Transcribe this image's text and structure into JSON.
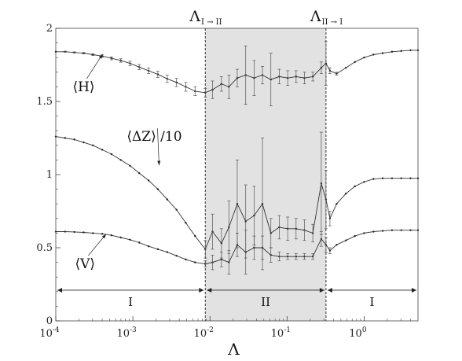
{
  "chart_data": {
    "type": "line",
    "xscale": "log",
    "xlim": [
      0.0001,
      5
    ],
    "ylim": [
      0,
      2
    ],
    "grid": false,
    "xlabel": "Λ",
    "ylabel": "",
    "x_ticks": [
      {
        "value": 0.0001,
        "base": "10",
        "exp": "-4"
      },
      {
        "value": 0.001,
        "base": "10",
        "exp": "-3"
      },
      {
        "value": 0.01,
        "base": "10",
        "exp": "-2"
      },
      {
        "value": 0.1,
        "base": "10",
        "exp": "-1"
      },
      {
        "value": 1,
        "base": "10",
        "exp": "0"
      }
    ],
    "y_ticks": [
      {
        "value": 0,
        "label": "0"
      },
      {
        "value": 0.5,
        "label": "0.5"
      },
      {
        "value": 1,
        "label": "1"
      },
      {
        "value": 1.5,
        "label": "1.5"
      },
      {
        "value": 2,
        "label": "2"
      }
    ],
    "shaded_region": {
      "x_start": 0.0087,
      "x_end": 0.32
    },
    "transitions": [
      {
        "x": 0.0087,
        "label_main": "Λ",
        "label_sub": "I → II"
      },
      {
        "x": 0.32,
        "label_main": "Λ",
        "label_sub": "II → I"
      }
    ],
    "phase_labels": [
      {
        "label": "I",
        "x_from": 0.0001,
        "x_to": 0.0087
      },
      {
        "label": "II",
        "x_from": 0.0087,
        "x_to": 0.32
      },
      {
        "label": "I",
        "x_from": 0.32,
        "x_to": 5
      }
    ],
    "arrow_y": 0.21,
    "series": [
      {
        "name": "⟨H⟩",
        "x": [
          0.0001,
          0.000132,
          0.000174,
          0.00023,
          0.000303,
          0.0004,
          0.000528,
          0.000697,
          0.00092,
          0.00121,
          0.0016,
          0.00211,
          0.00279,
          0.00368,
          0.00486,
          0.00641,
          0.0087,
          0.0108,
          0.0141,
          0.0176,
          0.0226,
          0.0291,
          0.0374,
          0.048,
          0.0617,
          0.0792,
          0.102,
          0.131,
          0.168,
          0.216,
          0.278,
          0.32,
          0.36,
          0.44,
          0.58,
          0.76,
          1.0,
          1.32,
          1.74,
          2.3,
          3.03,
          4.0,
          5.0
        ],
        "y": [
          1.84,
          1.84,
          1.835,
          1.83,
          1.82,
          1.81,
          1.795,
          1.78,
          1.76,
          1.735,
          1.71,
          1.685,
          1.655,
          1.63,
          1.6,
          1.57,
          1.56,
          1.58,
          1.62,
          1.6,
          1.66,
          1.68,
          1.66,
          1.68,
          1.65,
          1.67,
          1.66,
          1.67,
          1.66,
          1.67,
          1.73,
          1.76,
          1.71,
          1.69,
          1.73,
          1.77,
          1.8,
          1.82,
          1.83,
          1.84,
          1.845,
          1.85,
          1.85
        ],
        "err": [
          0,
          0.003,
          0.004,
          0.005,
          0.006,
          0.008,
          0.01,
          0.012,
          0.015,
          0.018,
          0.02,
          0.022,
          0.025,
          0.028,
          0.03,
          0.03,
          0.03,
          0.06,
          0.05,
          0.08,
          0.06,
          0.2,
          0.12,
          0.06,
          0.18,
          0.05,
          0.05,
          0.04,
          0.04,
          0.03,
          0.04,
          0.15,
          0.02,
          0.01,
          0,
          0,
          0,
          0,
          0,
          0,
          0,
          0,
          0
        ],
        "label": "⟨H⟩",
        "label_at": [
          0.00023,
          1.57
        ],
        "arrow_to": [
          0.000405,
          1.84
        ]
      },
      {
        "name": "⟨ΔZ⟩/10",
        "x": [
          0.0001,
          0.000132,
          0.000174,
          0.00023,
          0.000303,
          0.0004,
          0.000528,
          0.000697,
          0.00092,
          0.00121,
          0.0016,
          0.00211,
          0.00279,
          0.00368,
          0.00486,
          0.00641,
          0.0087,
          0.0108,
          0.0141,
          0.0176,
          0.0226,
          0.0291,
          0.0374,
          0.048,
          0.0617,
          0.0792,
          0.102,
          0.131,
          0.168,
          0.216,
          0.278,
          0.32,
          0.36,
          0.44,
          0.58,
          0.76,
          1.0,
          1.32,
          1.74,
          2.3,
          3.03,
          4.0,
          5.0
        ],
        "y": [
          1.26,
          1.25,
          1.24,
          1.22,
          1.2,
          1.17,
          1.14,
          1.1,
          1.06,
          1.01,
          0.96,
          0.9,
          0.83,
          0.76,
          0.67,
          0.58,
          0.49,
          0.61,
          0.53,
          0.64,
          0.8,
          0.68,
          0.72,
          0.8,
          0.6,
          0.64,
          0.63,
          0.63,
          0.62,
          0.6,
          0.94,
          0.83,
          0.7,
          0.8,
          0.87,
          0.92,
          0.95,
          0.97,
          0.975,
          0.975,
          0.975,
          0.975,
          0.975
        ],
        "err": [
          0,
          0,
          0,
          0,
          0,
          0,
          0,
          0,
          0,
          0,
          0,
          0,
          0,
          0,
          0,
          0,
          0.06,
          0.12,
          0.1,
          0.18,
          0.3,
          0.25,
          0.2,
          0.45,
          0.1,
          0.08,
          0.08,
          0.07,
          0.07,
          0.06,
          0.35,
          0.2,
          0.05,
          0,
          0,
          0,
          0,
          0,
          0,
          0,
          0,
          0,
          0
        ],
        "label": "⟨ΔZ⟩ /10",
        "label_at": [
          0.0019,
          1.23
        ],
        "arrow_to": [
          0.00219,
          1.08
        ]
      },
      {
        "name": "⟨V⟩",
        "x": [
          0.0001,
          0.000132,
          0.000174,
          0.00023,
          0.000303,
          0.0004,
          0.000528,
          0.000697,
          0.00092,
          0.00121,
          0.0016,
          0.00211,
          0.00279,
          0.00368,
          0.00486,
          0.00641,
          0.0087,
          0.0108,
          0.0141,
          0.0176,
          0.0226,
          0.0291,
          0.0374,
          0.048,
          0.0617,
          0.0792,
          0.102,
          0.131,
          0.168,
          0.216,
          0.278,
          0.32,
          0.36,
          0.44,
          0.58,
          0.76,
          1.0,
          1.32,
          1.74,
          2.3,
          3.03,
          4.0,
          5.0
        ],
        "y": [
          0.61,
          0.61,
          0.608,
          0.605,
          0.6,
          0.595,
          0.585,
          0.57,
          0.555,
          0.535,
          0.51,
          0.49,
          0.47,
          0.445,
          0.42,
          0.4,
          0.39,
          0.4,
          0.42,
          0.4,
          0.52,
          0.47,
          0.5,
          0.5,
          0.45,
          0.44,
          0.44,
          0.44,
          0.44,
          0.44,
          0.56,
          0.52,
          0.48,
          0.52,
          0.55,
          0.58,
          0.6,
          0.61,
          0.615,
          0.62,
          0.62,
          0.62,
          0.62
        ],
        "err": [
          0,
          0,
          0,
          0,
          0,
          0,
          0,
          0,
          0,
          0,
          0,
          0,
          0,
          0,
          0,
          0,
          0.02,
          0.05,
          0.05,
          0.08,
          0.08,
          0.15,
          0.08,
          0.08,
          0.05,
          0.03,
          0.02,
          0.02,
          0.02,
          0.02,
          0.05,
          0.05,
          0.02,
          0,
          0,
          0,
          0,
          0,
          0,
          0,
          0,
          0,
          0
        ],
        "label": "⟨V⟩",
        "label_at": [
          0.00024,
          0.36
        ],
        "arrow_to": [
          0.00045,
          0.61
        ]
      }
    ]
  }
}
